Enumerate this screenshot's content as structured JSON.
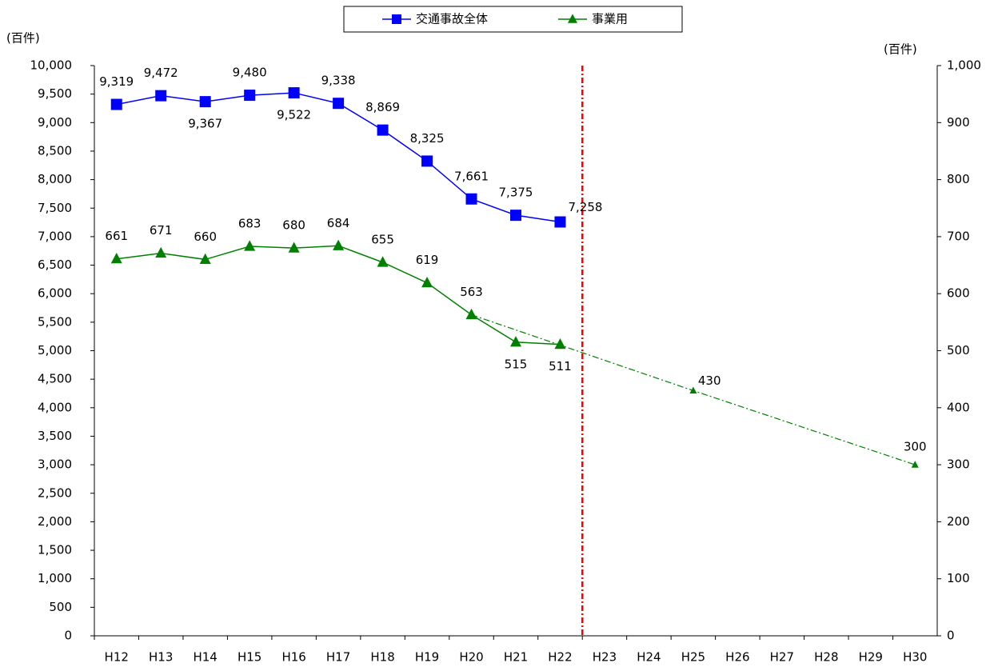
{
  "chart_data": {
    "type": "line",
    "y_label": "(百件)",
    "y2_label": "(百件)",
    "categories": [
      "H12",
      "H13",
      "H14",
      "H15",
      "H16",
      "H17",
      "H18",
      "H19",
      "H20",
      "H21",
      "H22",
      "H23",
      "H24",
      "H25",
      "H26",
      "H27",
      "H28",
      "H29",
      "H30"
    ],
    "ylim": [
      0,
      10000
    ],
    "yticks": [
      0,
      500,
      {
        "value": 1000,
        "label": "1,000"
      },
      {
        "value": 1500,
        "label": "1,500"
      },
      {
        "value": 2000,
        "label": "2,000"
      },
      {
        "value": 2500,
        "label": "2,500"
      },
      {
        "value": 3000,
        "label": "3,000"
      },
      {
        "value": 3500,
        "label": "3,500"
      },
      {
        "value": 4000,
        "label": "4,000"
      },
      {
        "value": 4500,
        "label": "4,500"
      },
      {
        "value": 5000,
        "label": "5,000"
      },
      {
        "value": 5500,
        "label": "5,500"
      },
      {
        "value": 6000,
        "label": "6,000"
      },
      {
        "value": 6500,
        "label": "6,500"
      },
      {
        "value": 7000,
        "label": "7,000"
      },
      {
        "value": 7500,
        "label": "7,500"
      },
      {
        "value": 8000,
        "label": "8,000"
      },
      {
        "value": 8500,
        "label": "8,500"
      },
      {
        "value": 9000,
        "label": "9,000"
      },
      {
        "value": 9500,
        "label": "9,500"
      },
      {
        "value": 10000,
        "label": "10,000"
      }
    ],
    "y2lim": [
      0,
      1000
    ],
    "y2ticks": [
      0,
      100,
      200,
      300,
      400,
      500,
      600,
      700,
      800,
      900,
      {
        "value": 1000,
        "label": "1,000"
      }
    ],
    "series": [
      {
        "name": "交通事故全体",
        "color": "#0000ff",
        "marker": "square",
        "values": [
          9319,
          9472,
          9367,
          9480,
          9522,
          9338,
          8869,
          8325,
          7661,
          7375,
          7258,
          null,
          null,
          null,
          null,
          null,
          null,
          null,
          null
        ],
        "value_labels": [
          "9,319",
          "9,472",
          "9,367",
          "9,480",
          "9,522",
          "9,338",
          "8,869",
          "8,325",
          "7,661",
          "7,375",
          "7,258",
          null,
          null,
          null,
          null,
          null,
          null,
          null,
          null
        ]
      },
      {
        "name": "事業用",
        "color": "#008000",
        "marker": "triangle",
        "axis": "y2",
        "values": [
          661,
          671,
          660,
          683,
          680,
          684,
          655,
          619,
          563,
          515,
          511,
          null,
          null,
          430,
          null,
          null,
          null,
          null,
          300
        ]
      }
    ]
  }
}
